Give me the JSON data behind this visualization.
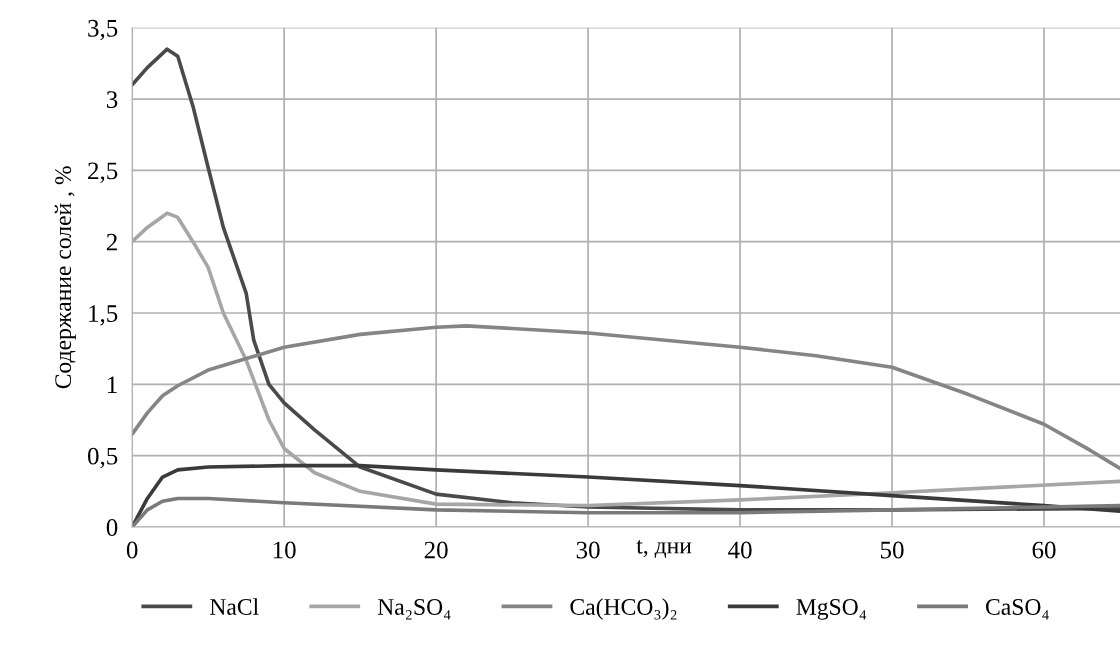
{
  "chart_data": {
    "type": "line",
    "xlabel": "t, дни",
    "ylabel": "Содержание солей , %",
    "grid": true,
    "legend": "bottom",
    "marker": "none",
    "line_style": "solid",
    "xlim": [
      0,
      65
    ],
    "xticks": [
      0,
      10,
      20,
      30,
      40,
      50,
      60
    ],
    "ylim": [
      0,
      3.5
    ],
    "yticks": [
      0,
      {
        "value": 0.5,
        "label": "0,5"
      },
      1,
      {
        "value": 1.5,
        "label": "1,5"
      },
      2,
      {
        "value": 2.5,
        "label": "2,5"
      },
      3,
      {
        "value": 3.5,
        "label": "3,5"
      }
    ],
    "series": [
      {
        "name": "NaCl",
        "color": "#4a4a4a",
        "x": [
          0,
          1,
          2.3,
          3,
          4,
          5,
          6,
          7.5,
          8,
          9,
          10,
          12,
          15,
          20,
          25,
          30,
          40,
          50,
          65
        ],
        "values": [
          3.1,
          3.22,
          3.35,
          3.3,
          2.95,
          2.52,
          2.1,
          1.64,
          1.31,
          1.0,
          0.87,
          0.68,
          0.42,
          0.23,
          0.17,
          0.14,
          0.12,
          0.12,
          0.13
        ]
      },
      {
        "name": "Na₂SO₄",
        "color": "#a6a6a6",
        "x": [
          0,
          1,
          2.3,
          3,
          4,
          5,
          6,
          7.5,
          9,
          10,
          12,
          15,
          20,
          30,
          40,
          50,
          65
        ],
        "values": [
          2.0,
          2.1,
          2.2,
          2.17,
          2.0,
          1.82,
          1.5,
          1.17,
          0.75,
          0.55,
          0.38,
          0.25,
          0.16,
          0.15,
          0.19,
          0.24,
          0.32
        ]
      },
      {
        "name": "Ca(HCO₃)₂",
        "color": "#858585",
        "x": [
          0,
          1,
          2,
          3,
          5,
          10,
          15,
          20,
          22,
          30,
          40,
          45,
          50,
          55,
          60,
          63,
          65
        ],
        "values": [
          0.65,
          0.8,
          0.92,
          0.99,
          1.1,
          1.26,
          1.35,
          1.4,
          1.41,
          1.36,
          1.26,
          1.2,
          1.12,
          0.93,
          0.72,
          0.54,
          0.41
        ]
      },
      {
        "name": "MgSO₄",
        "color": "#3a3a3a",
        "x": [
          0,
          1,
          2,
          3,
          5,
          10,
          15,
          20,
          30,
          40,
          50,
          60,
          65
        ],
        "values": [
          0,
          0.2,
          0.35,
          0.4,
          0.42,
          0.43,
          0.43,
          0.4,
          0.35,
          0.29,
          0.22,
          0.15,
          0.11
        ]
      },
      {
        "name": "CaSO₄",
        "color": "#7a7a7a",
        "x": [
          0,
          1,
          2,
          3,
          5,
          10,
          20,
          30,
          40,
          50,
          60,
          65
        ],
        "values": [
          0,
          0.12,
          0.18,
          0.2,
          0.2,
          0.17,
          0.12,
          0.1,
          0.1,
          0.12,
          0.14,
          0.15
        ]
      }
    ]
  }
}
